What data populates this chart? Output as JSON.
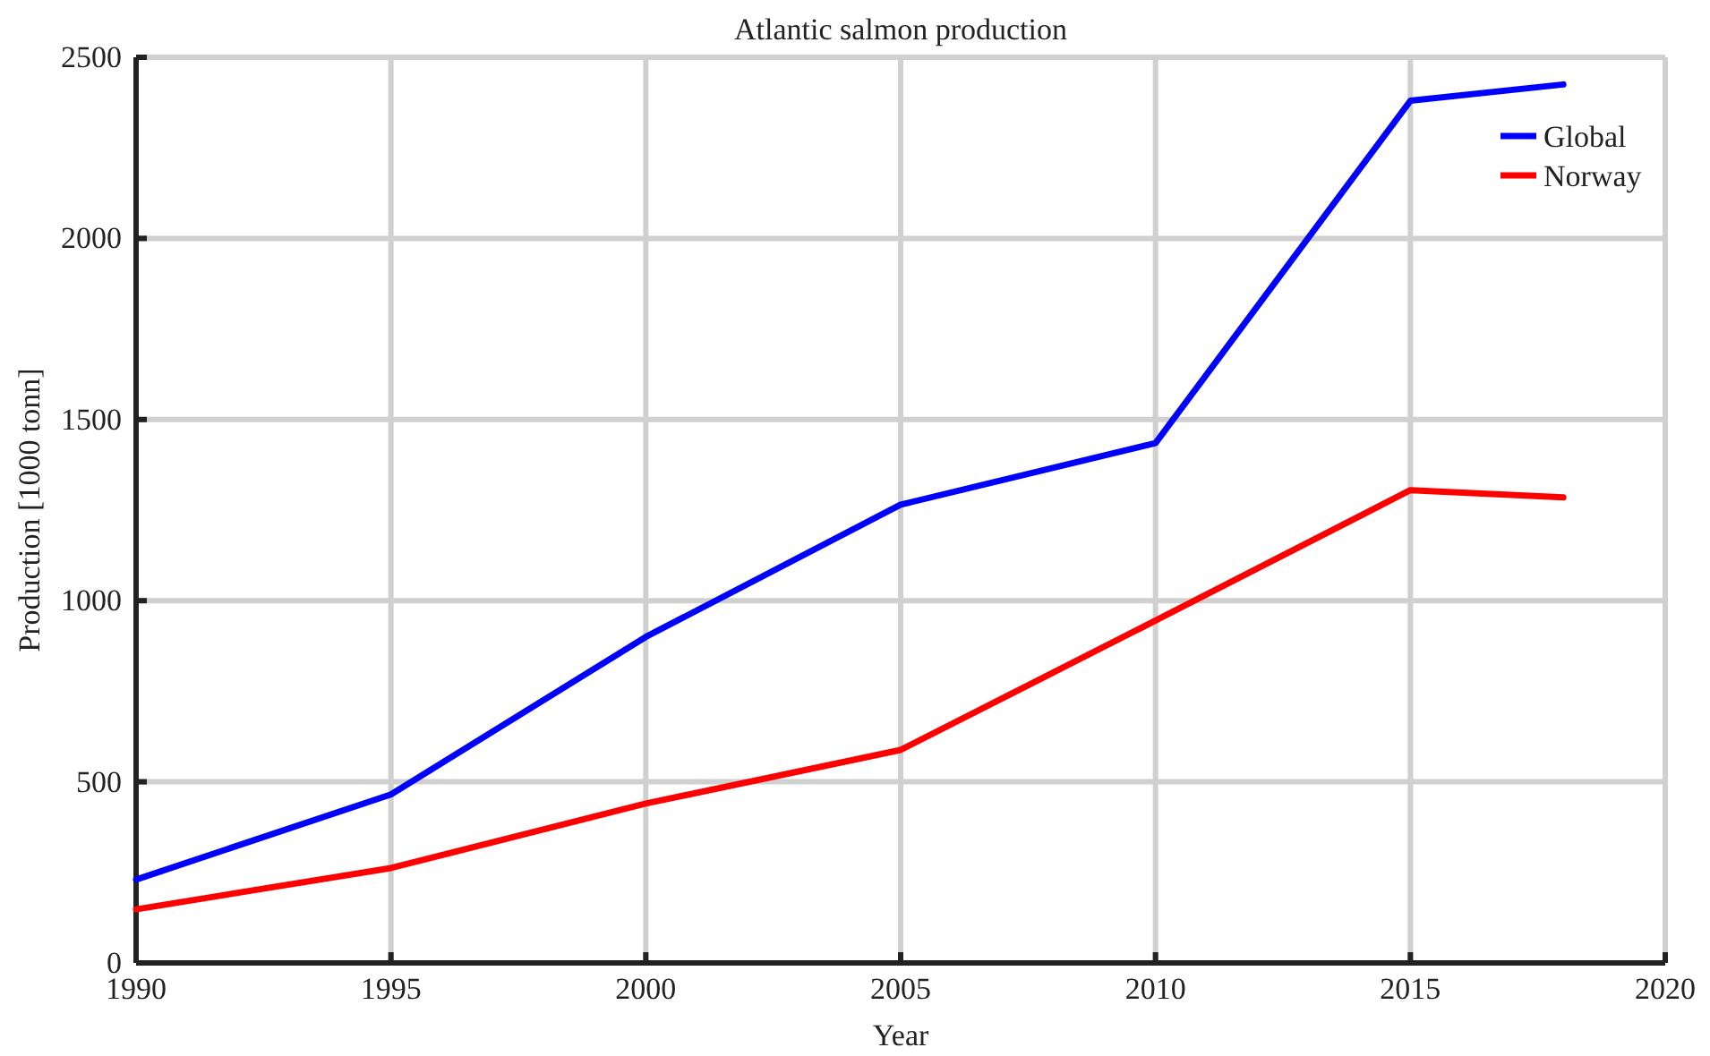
{
  "chart_data": {
    "type": "line",
    "title": "Atlantic salmon production",
    "xlabel": "Year",
    "ylabel": "Production [1000 tonn]",
    "x": [
      1990,
      1995,
      2000,
      2005,
      2010,
      2015,
      2018
    ],
    "series": [
      {
        "name": "Global",
        "color": "#0000ff",
        "values": [
          230,
          465,
          900,
          1265,
          1435,
          2380,
          2425
        ]
      },
      {
        "name": "Norway",
        "color": "#ff0000",
        "values": [
          148,
          262,
          440,
          588,
          945,
          1305,
          1285
        ]
      }
    ],
    "xlim": [
      1990,
      2020
    ],
    "xticks": [
      1990,
      1995,
      2000,
      2005,
      2010,
      2015,
      2020
    ],
    "ylim": [
      0,
      2500
    ],
    "yticks": [
      0,
      500,
      1000,
      1500,
      2000,
      2500
    ],
    "grid": true,
    "legend": "top right",
    "line_style": "solid"
  }
}
